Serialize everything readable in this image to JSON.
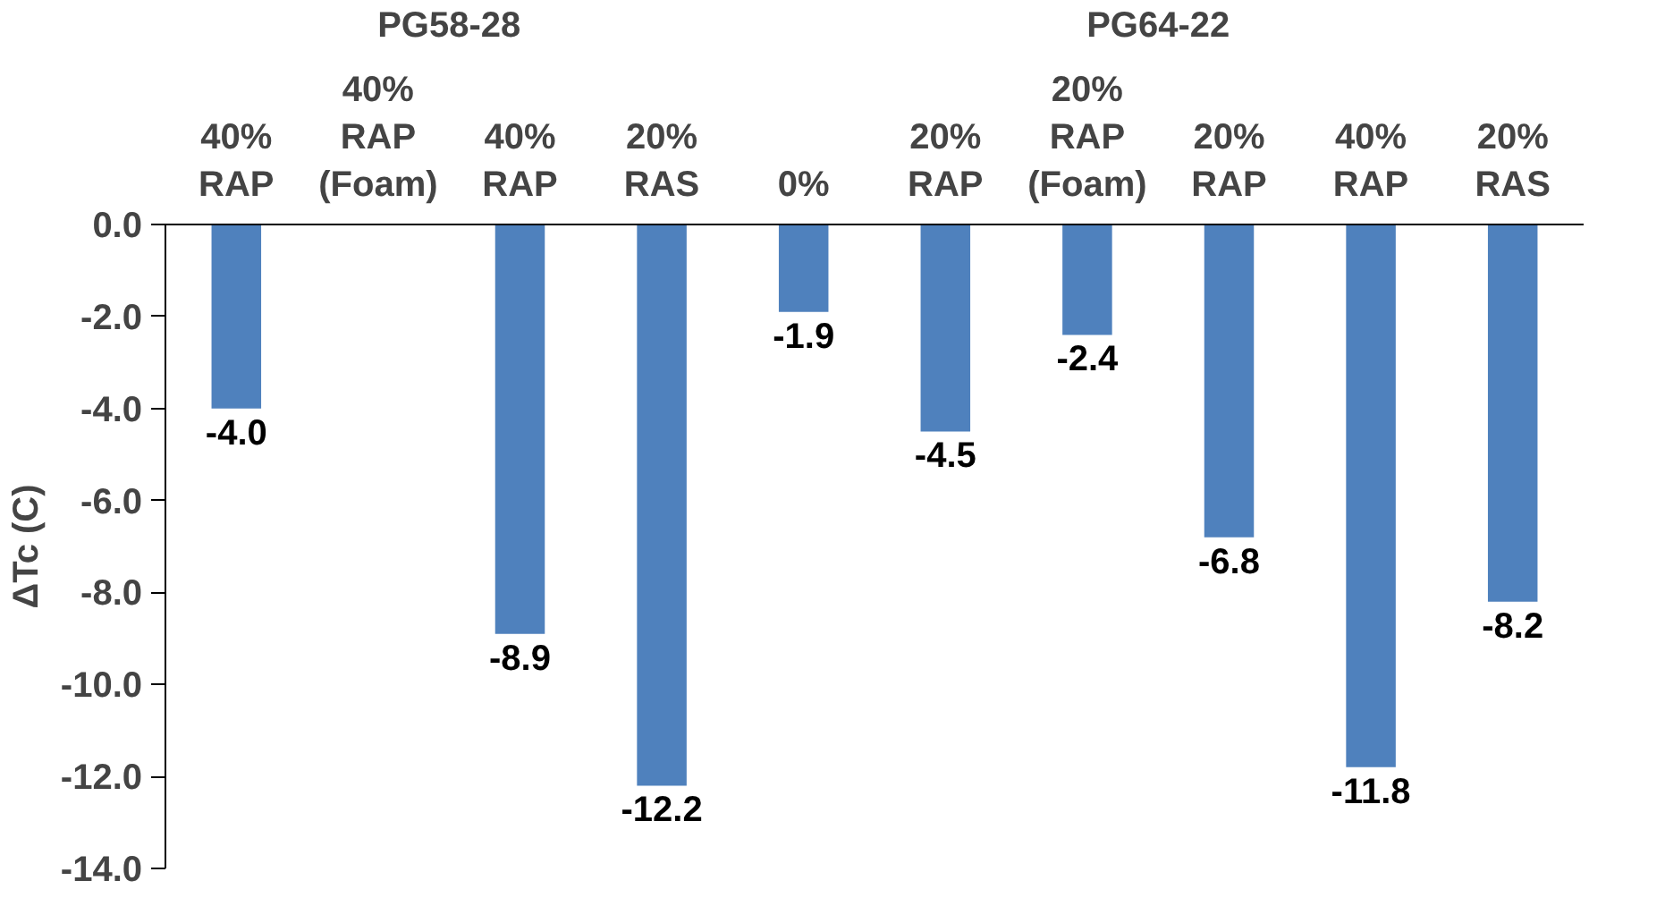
{
  "chart_data": {
    "type": "bar",
    "ylabel": "ΔTc (C)",
    "categories": [
      "40%\nRAP",
      "40%\nRAP\n(Foam)",
      "40%\nRAP",
      "20%\nRAS",
      "0%",
      "20%\nRAP",
      "20%\nRAP\n(Foam)",
      "20%\nRAP",
      "40%\nRAP",
      "20%\nRAS"
    ],
    "values": [
      -4.0,
      null,
      -8.9,
      -12.2,
      -1.9,
      -4.5,
      -2.4,
      -6.8,
      -11.8,
      -8.2
    ],
    "value_labels": [
      "-4.0",
      null,
      "-8.9",
      "-12.2",
      "-1.9",
      "-4.5",
      "-2.4",
      "-6.8",
      "-11.8",
      "-8.2"
    ],
    "color": "#4f81bd",
    "ylim": [
      -14,
      0
    ],
    "yticks": [
      {
        "value": 0,
        "label": "0.0"
      },
      {
        "value": -2,
        "label": "-2.0"
      },
      {
        "value": -4,
        "label": "-4.0"
      },
      {
        "value": -6,
        "label": "-6.0"
      },
      {
        "value": -8,
        "label": "-8.0"
      },
      {
        "value": -10,
        "label": "-10.0"
      },
      {
        "value": -12,
        "label": "-12.0"
      },
      {
        "value": -14,
        "label": "-14.0"
      }
    ],
    "annotations": [
      "PG58-28",
      "PG64-22"
    ],
    "grid": false
  }
}
